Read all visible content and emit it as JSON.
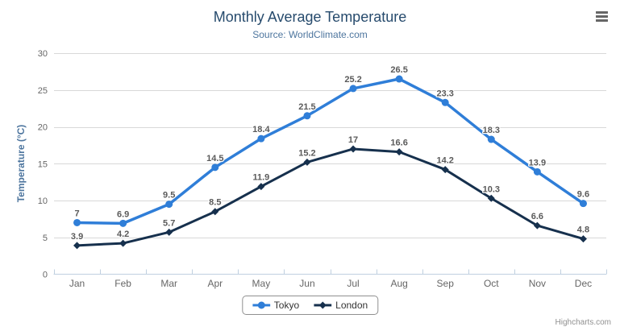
{
  "header": {
    "title": "Monthly Average Temperature",
    "subtitle": "Source: WorldClimate.com"
  },
  "chart_data": {
    "type": "line",
    "categories": [
      "Jan",
      "Feb",
      "Mar",
      "Apr",
      "May",
      "Jun",
      "Jul",
      "Aug",
      "Sep",
      "Oct",
      "Nov",
      "Dec"
    ],
    "series": [
      {
        "name": "Tokyo",
        "color": "#2f7ed8",
        "marker": "circle",
        "line_width": 3.5,
        "values": [
          7,
          6.9,
          9.5,
          14.5,
          18.4,
          21.5,
          25.2,
          26.5,
          23.3,
          18.3,
          13.9,
          9.6
        ]
      },
      {
        "name": "London",
        "color": "#16304d",
        "marker": "diamond",
        "line_width": 3,
        "values": [
          3.9,
          4.2,
          5.7,
          8.5,
          11.9,
          15.2,
          17,
          16.6,
          14.2,
          10.3,
          6.6,
          4.8
        ]
      }
    ],
    "title": "Monthly Average Temperature",
    "subtitle": "Source: WorldClimate.com",
    "xlabel": "",
    "ylabel": "Temperature (°C)",
    "ylim": [
      0,
      30
    ],
    "yticks": [
      0,
      5,
      10,
      15,
      20,
      25,
      30
    ],
    "grid": true,
    "legend_position": "bottom",
    "data_labels": true
  },
  "credits": {
    "label": "Highcharts.com"
  },
  "colors": {
    "title": "#274b6d",
    "subtitle": "#4d759e",
    "axis_title": "#4d759e",
    "axis_labels": "#666666",
    "data_labels": "#5a5a5a",
    "grid_line": "#d8d8d8",
    "axis_line": "#c0d0e0",
    "legend_border": "#909090",
    "credits": "#909090",
    "menu_icon": "#666666"
  }
}
